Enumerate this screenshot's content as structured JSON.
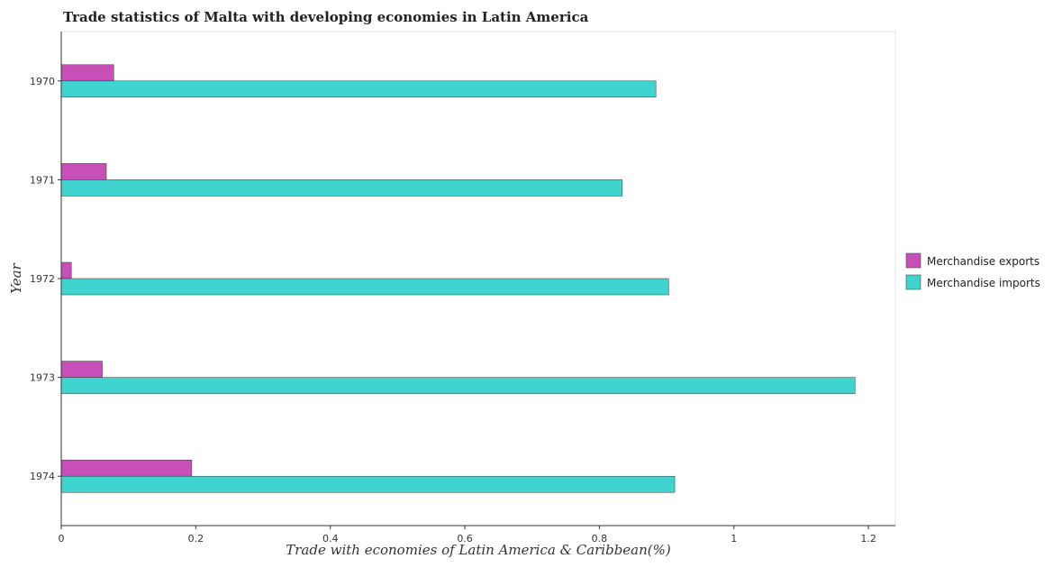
{
  "chart_data": {
    "type": "bar",
    "orientation": "horizontal",
    "title": "Trade statistics of Malta with developing economies in Latin America",
    "xlabel": "Trade with economies of Latin America & Caribbean(%)",
    "ylabel": "Year",
    "categories": [
      "1970",
      "1971",
      "1972",
      "1973",
      "1974"
    ],
    "series": [
      {
        "name": "Merchandise exports",
        "color": "#c94fb8",
        "values": [
          0.078,
          0.067,
          0.015,
          0.061,
          0.194
        ]
      },
      {
        "name": "Merchandise imports",
        "color": "#40d4d0",
        "values": [
          0.884,
          0.834,
          0.903,
          1.18,
          0.912
        ]
      }
    ],
    "xlim": [
      0,
      1.24
    ],
    "xticks": [
      0,
      0.2,
      0.4,
      0.6,
      0.8,
      1.0,
      1.2
    ],
    "xtick_labels": [
      "0",
      "0.2",
      "0.4",
      "0.6",
      "0.8",
      "1",
      "1.2"
    ],
    "grid": false,
    "legend_position": "right"
  }
}
